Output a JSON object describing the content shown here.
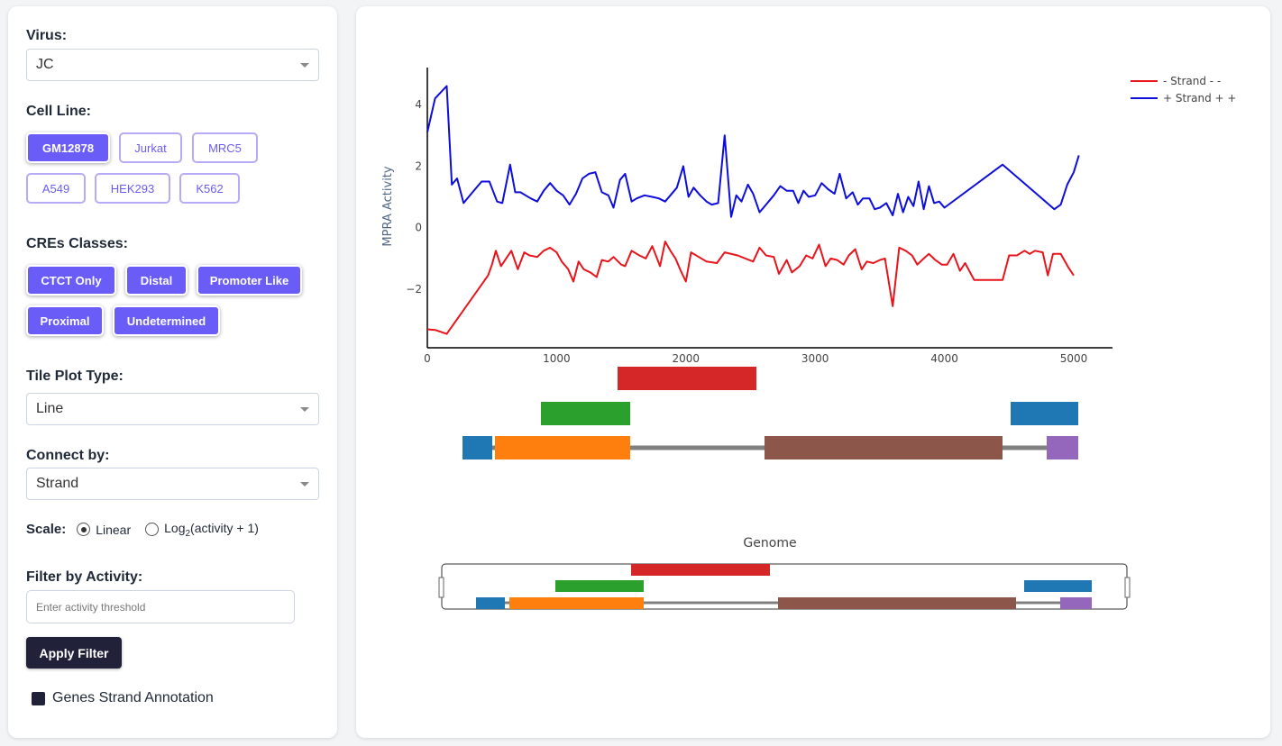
{
  "sidebar": {
    "virus": {
      "label": "Virus:",
      "value": "JC"
    },
    "cell_line": {
      "label": "Cell Line:",
      "options": [
        "GM12878",
        "Jurkat",
        "MRC5",
        "A549",
        "HEK293",
        "K562"
      ],
      "selected": "GM12878"
    },
    "cre_classes": {
      "label": "CREs Classes:",
      "options": [
        "CTCT Only",
        "Distal",
        "Promoter Like",
        "Proximal",
        "Undetermined"
      ]
    },
    "tile_plot_type": {
      "label": "Tile Plot Type:",
      "value": "Line"
    },
    "connect_by": {
      "label": "Connect by:",
      "value": "Strand"
    },
    "scale": {
      "label": "Scale:",
      "options": [
        "Linear",
        "Log",
        "2",
        "(activity + 1)"
      ],
      "selected": "Linear"
    },
    "filter": {
      "label": "Filter by Activity:",
      "placeholder": "Enter activity threshold",
      "button": "Apply Filter"
    },
    "genes_strand_annotation": {
      "label": "Genes Strand Annotation",
      "checked": true
    }
  },
  "colors": {
    "accent": "#6a5cf7",
    "dark_button": "#22213a",
    "minus_strand": "#e8141b",
    "plus_strand": "#0d0ddc"
  },
  "chart_data": [
    {
      "type": "line",
      "ylabel": "MPRA Activity",
      "xlabel": "",
      "xlim": [
        0,
        5300
      ],
      "ylim": [
        -3.9,
        5.2
      ],
      "xticks": [
        0,
        1000,
        2000,
        3000,
        4000,
        5000
      ],
      "yticks": [
        -2,
        0,
        2,
        4
      ],
      "ytick_labels": [
        "−2",
        "0",
        "2",
        "4"
      ],
      "legend_position": "top-right",
      "series": [
        {
          "name": "- Strand - -",
          "color": "#e8141b",
          "points": [
            [
              0,
              -3.3
            ],
            [
              60,
              -3.32
            ],
            [
              150,
              -3.45
            ],
            [
              470,
              -1.55
            ],
            [
              500,
              -1.2
            ],
            [
              530,
              -0.75
            ],
            [
              570,
              -1.25
            ],
            [
              650,
              -0.75
            ],
            [
              700,
              -1.35
            ],
            [
              750,
              -0.8
            ],
            [
              790,
              -0.9
            ],
            [
              850,
              -0.95
            ],
            [
              900,
              -0.75
            ],
            [
              950,
              -0.65
            ],
            [
              1000,
              -0.8
            ],
            [
              1040,
              -1.1
            ],
            [
              1090,
              -1.35
            ],
            [
              1130,
              -1.75
            ],
            [
              1170,
              -1.1
            ],
            [
              1210,
              -1.35
            ],
            [
              1260,
              -1.45
            ],
            [
              1310,
              -1.6
            ],
            [
              1350,
              -1.05
            ],
            [
              1400,
              -1.1
            ],
            [
              1440,
              -0.95
            ],
            [
              1500,
              -1.2
            ],
            [
              1530,
              -1.25
            ],
            [
              1580,
              -0.75
            ],
            [
              1640,
              -0.9
            ],
            [
              1690,
              -1.0
            ],
            [
              1740,
              -0.6
            ],
            [
              1800,
              -1.25
            ],
            [
              1840,
              -0.45
            ],
            [
              1880,
              -0.75
            ],
            [
              1920,
              -1.0
            ],
            [
              1960,
              -1.4
            ],
            [
              2000,
              -1.75
            ],
            [
              2040,
              -0.8
            ],
            [
              2100,
              -0.95
            ],
            [
              2160,
              -1.1
            ],
            [
              2240,
              -1.15
            ],
            [
              2300,
              -0.8
            ],
            [
              2400,
              -0.9
            ],
            [
              2520,
              -1.1
            ],
            [
              2570,
              -0.65
            ],
            [
              2620,
              -0.9
            ],
            [
              2680,
              -0.95
            ],
            [
              2720,
              -1.5
            ],
            [
              2780,
              -1.05
            ],
            [
              2820,
              -1.45
            ],
            [
              2880,
              -1.25
            ],
            [
              2930,
              -0.9
            ],
            [
              2980,
              -1.0
            ],
            [
              3030,
              -0.55
            ],
            [
              3080,
              -1.25
            ],
            [
              3120,
              -1.0
            ],
            [
              3170,
              -1.05
            ],
            [
              3220,
              -1.2
            ],
            [
              3260,
              -0.9
            ],
            [
              3310,
              -0.7
            ],
            [
              3360,
              -1.35
            ],
            [
              3400,
              -1.1
            ],
            [
              3450,
              -1.15
            ],
            [
              3500,
              -1.05
            ],
            [
              3540,
              -1.0
            ],
            [
              3600,
              -2.55
            ],
            [
              3650,
              -0.65
            ],
            [
              3700,
              -0.75
            ],
            [
              3750,
              -0.9
            ],
            [
              3790,
              -1.2
            ],
            [
              3840,
              -1.0
            ],
            [
              3880,
              -0.85
            ],
            [
              3930,
              -1.05
            ],
            [
              3980,
              -1.2
            ],
            [
              4020,
              -1.2
            ],
            [
              4070,
              -0.85
            ],
            [
              4120,
              -1.4
            ],
            [
              4160,
              -1.15
            ],
            [
              4230,
              -1.7
            ],
            [
              4450,
              -1.7
            ],
            [
              4500,
              -0.9
            ],
            [
              4560,
              -0.9
            ],
            [
              4620,
              -0.75
            ],
            [
              4660,
              -0.85
            ],
            [
              4700,
              -0.75
            ],
            [
              4760,
              -0.8
            ],
            [
              4800,
              -1.55
            ],
            [
              4840,
              -0.85
            ],
            [
              4900,
              -0.85
            ],
            [
              4960,
              -1.3
            ],
            [
              5000,
              -1.55
            ]
          ]
        },
        {
          "name": "+ Strand + +",
          "color": "#0d0ddc",
          "points": [
            [
              0,
              3.1
            ],
            [
              60,
              4.2
            ],
            [
              150,
              4.6
            ],
            [
              190,
              1.4
            ],
            [
              230,
              1.6
            ],
            [
              280,
              0.8
            ],
            [
              330,
              1.05
            ],
            [
              420,
              1.5
            ],
            [
              480,
              1.5
            ],
            [
              540,
              0.85
            ],
            [
              580,
              0.8
            ],
            [
              640,
              2.05
            ],
            [
              680,
              1.15
            ],
            [
              720,
              1.15
            ],
            [
              800,
              0.95
            ],
            [
              850,
              0.85
            ],
            [
              900,
              1.2
            ],
            [
              950,
              1.45
            ],
            [
              1000,
              1.2
            ],
            [
              1050,
              1.05
            ],
            [
              1100,
              0.75
            ],
            [
              1150,
              1.1
            ],
            [
              1200,
              1.6
            ],
            [
              1250,
              1.75
            ],
            [
              1300,
              1.8
            ],
            [
              1350,
              1.15
            ],
            [
              1400,
              1.05
            ],
            [
              1440,
              0.65
            ],
            [
              1490,
              1.55
            ],
            [
              1530,
              1.75
            ],
            [
              1580,
              0.85
            ],
            [
              1620,
              0.95
            ],
            [
              1680,
              1.05
            ],
            [
              1740,
              1.0
            ],
            [
              1790,
              0.95
            ],
            [
              1840,
              0.85
            ],
            [
              1880,
              1.05
            ],
            [
              1930,
              1.3
            ],
            [
              1980,
              2.0
            ],
            [
              2020,
              1.0
            ],
            [
              2060,
              1.3
            ],
            [
              2110,
              1.05
            ],
            [
              2160,
              0.85
            ],
            [
              2200,
              0.75
            ],
            [
              2250,
              0.8
            ],
            [
              2300,
              3.0
            ],
            [
              2350,
              0.35
            ],
            [
              2390,
              1.05
            ],
            [
              2430,
              0.85
            ],
            [
              2480,
              1.4
            ],
            [
              2520,
              1.1
            ],
            [
              2570,
              0.5
            ],
            [
              2620,
              0.75
            ],
            [
              2680,
              1.05
            ],
            [
              2730,
              1.35
            ],
            [
              2780,
              1.2
            ],
            [
              2830,
              1.2
            ],
            [
              2870,
              0.8
            ],
            [
              2910,
              1.2
            ],
            [
              2950,
              1.0
            ],
            [
              3000,
              1.05
            ],
            [
              3050,
              1.45
            ],
            [
              3100,
              1.25
            ],
            [
              3150,
              1.1
            ],
            [
              3190,
              1.75
            ],
            [
              3240,
              0.95
            ],
            [
              3290,
              1.15
            ],
            [
              3330,
              0.75
            ],
            [
              3370,
              0.95
            ],
            [
              3420,
              0.95
            ],
            [
              3460,
              0.6
            ],
            [
              3500,
              0.65
            ],
            [
              3550,
              0.8
            ],
            [
              3600,
              0.4
            ],
            [
              3640,
              1.1
            ],
            [
              3680,
              0.5
            ],
            [
              3720,
              1.0
            ],
            [
              3760,
              0.7
            ],
            [
              3800,
              1.5
            ],
            [
              3840,
              0.6
            ],
            [
              3880,
              1.35
            ],
            [
              3920,
              0.8
            ],
            [
              3960,
              0.85
            ],
            [
              4000,
              0.65
            ],
            [
              4450,
              2.05
            ],
            [
              4850,
              0.6
            ],
            [
              4900,
              0.75
            ],
            [
              4950,
              1.4
            ],
            [
              5000,
              1.8
            ],
            [
              5040,
              2.35
            ]
          ]
        }
      ]
    }
  ],
  "genome_track": {
    "label": "Genome"
  }
}
